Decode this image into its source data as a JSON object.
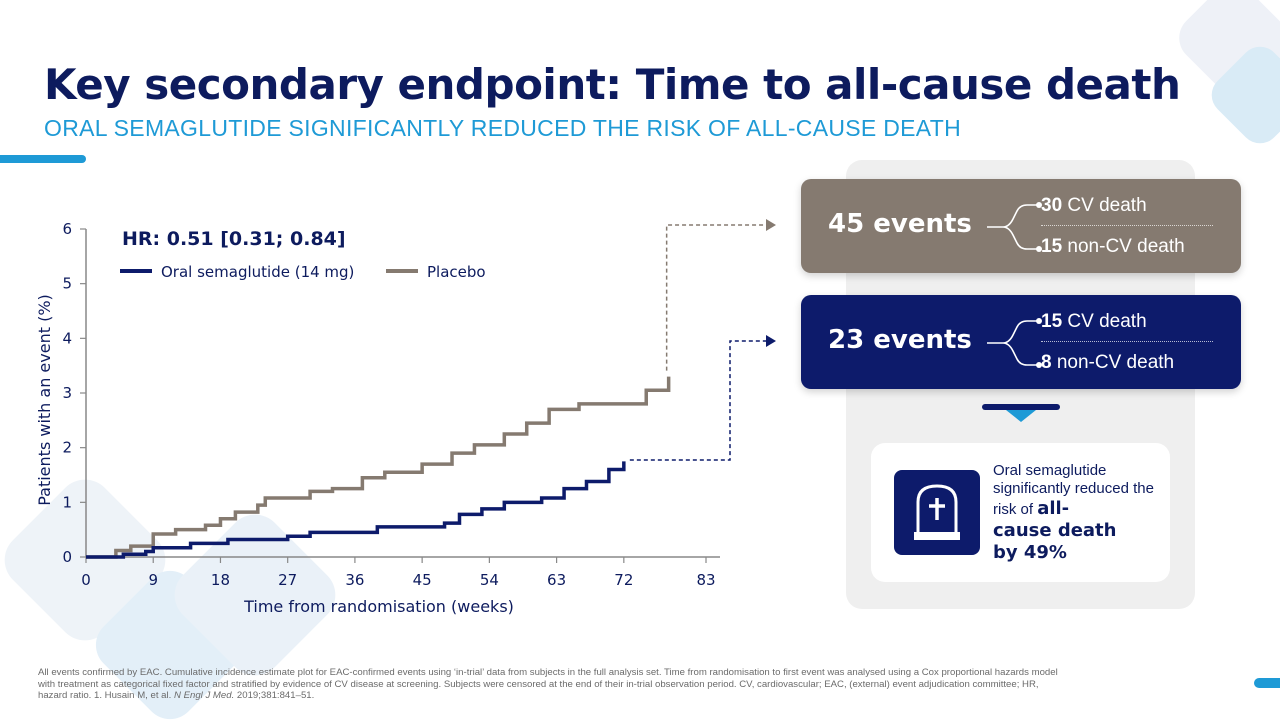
{
  "header": {
    "title": "Key secondary endpoint: Time to all-cause death",
    "subtitle": "ORAL SEMAGLUTIDE SIGNIFICANTLY REDUCED THE RISK OF ALL-CAUSE DEATH"
  },
  "colors": {
    "navy": "#0d1b6b",
    "placebo_brown": "#857a70",
    "accent_blue": "#1e9ad6"
  },
  "chart_data": {
    "type": "line",
    "annotation": "HR: 0.51 [0.31; 0.84]",
    "xlabel": "Time from randomisation (weeks)",
    "ylabel": "Patients with an event (%)",
    "xticks": [
      0,
      9,
      18,
      27,
      36,
      45,
      54,
      63,
      72,
      83
    ],
    "yticks": [
      0,
      1,
      2,
      3,
      4,
      5,
      6
    ],
    "xlim": [
      0,
      83
    ],
    "ylim": [
      0,
      6
    ],
    "legend_position": "top-left",
    "series": [
      {
        "name": "Oral semaglutide (14 mg)",
        "color": "#0d1b6b",
        "x": [
          0,
          5,
          8,
          9,
          14,
          19,
          27,
          30,
          39,
          48,
          50,
          53,
          56,
          61,
          64,
          67,
          70,
          72
        ],
        "y": [
          0.0,
          0.05,
          0.1,
          0.17,
          0.25,
          0.32,
          0.38,
          0.45,
          0.55,
          0.62,
          0.78,
          0.88,
          1.0,
          1.08,
          1.25,
          1.38,
          1.6,
          1.75
        ]
      },
      {
        "name": "Placebo",
        "color": "#857a70",
        "x": [
          0,
          4,
          6,
          9,
          12,
          16,
          18,
          20,
          23,
          24,
          27,
          30,
          33,
          37,
          40,
          45,
          49,
          52,
          56,
          59,
          62,
          66,
          69,
          75,
          78
        ],
        "y": [
          0.0,
          0.12,
          0.2,
          0.42,
          0.5,
          0.58,
          0.7,
          0.82,
          0.95,
          1.08,
          1.08,
          1.2,
          1.25,
          1.45,
          1.55,
          1.7,
          1.9,
          2.05,
          2.25,
          2.45,
          2.7,
          2.8,
          2.8,
          3.05,
          3.3
        ]
      }
    ]
  },
  "events": {
    "placebo": {
      "count_label": "45 events",
      "line1_num": "30",
      "line1_text": "CV death",
      "line2_num": "15",
      "line2_text": "non-CV death"
    },
    "oral": {
      "count_label": "23 events",
      "line1_num": "15",
      "line1_text": "CV death",
      "line2_num": "8",
      "line2_text": "non-CV death"
    }
  },
  "conclusion": {
    "line1": "Oral semaglutide significantly reduced the risk of",
    "emphasis1": "all-",
    "emphasis2": "cause death",
    "emphasis3": "by 49%",
    "icon": "tombstone-icon"
  },
  "footnote": {
    "text1": "All events confirmed by EAC. Cumulative incidence estimate plot for EAC-confirmed events using ‘in-trial’ data from subjects in the full analysis set. Time from randomisation to first event was analysed using a Cox proportional hazards model with treatment as categorical fixed factor and stratified by evidence of CV disease at screening. Subjects were censored at the end of their in-trial observation period. CV, cardiovascular; EAC, (external) event adjudication committee; HR, hazard ratio. 1. Husain M, et al.",
    "journal": "N Engl J Med.",
    "text2": "2019;381:841–51."
  }
}
